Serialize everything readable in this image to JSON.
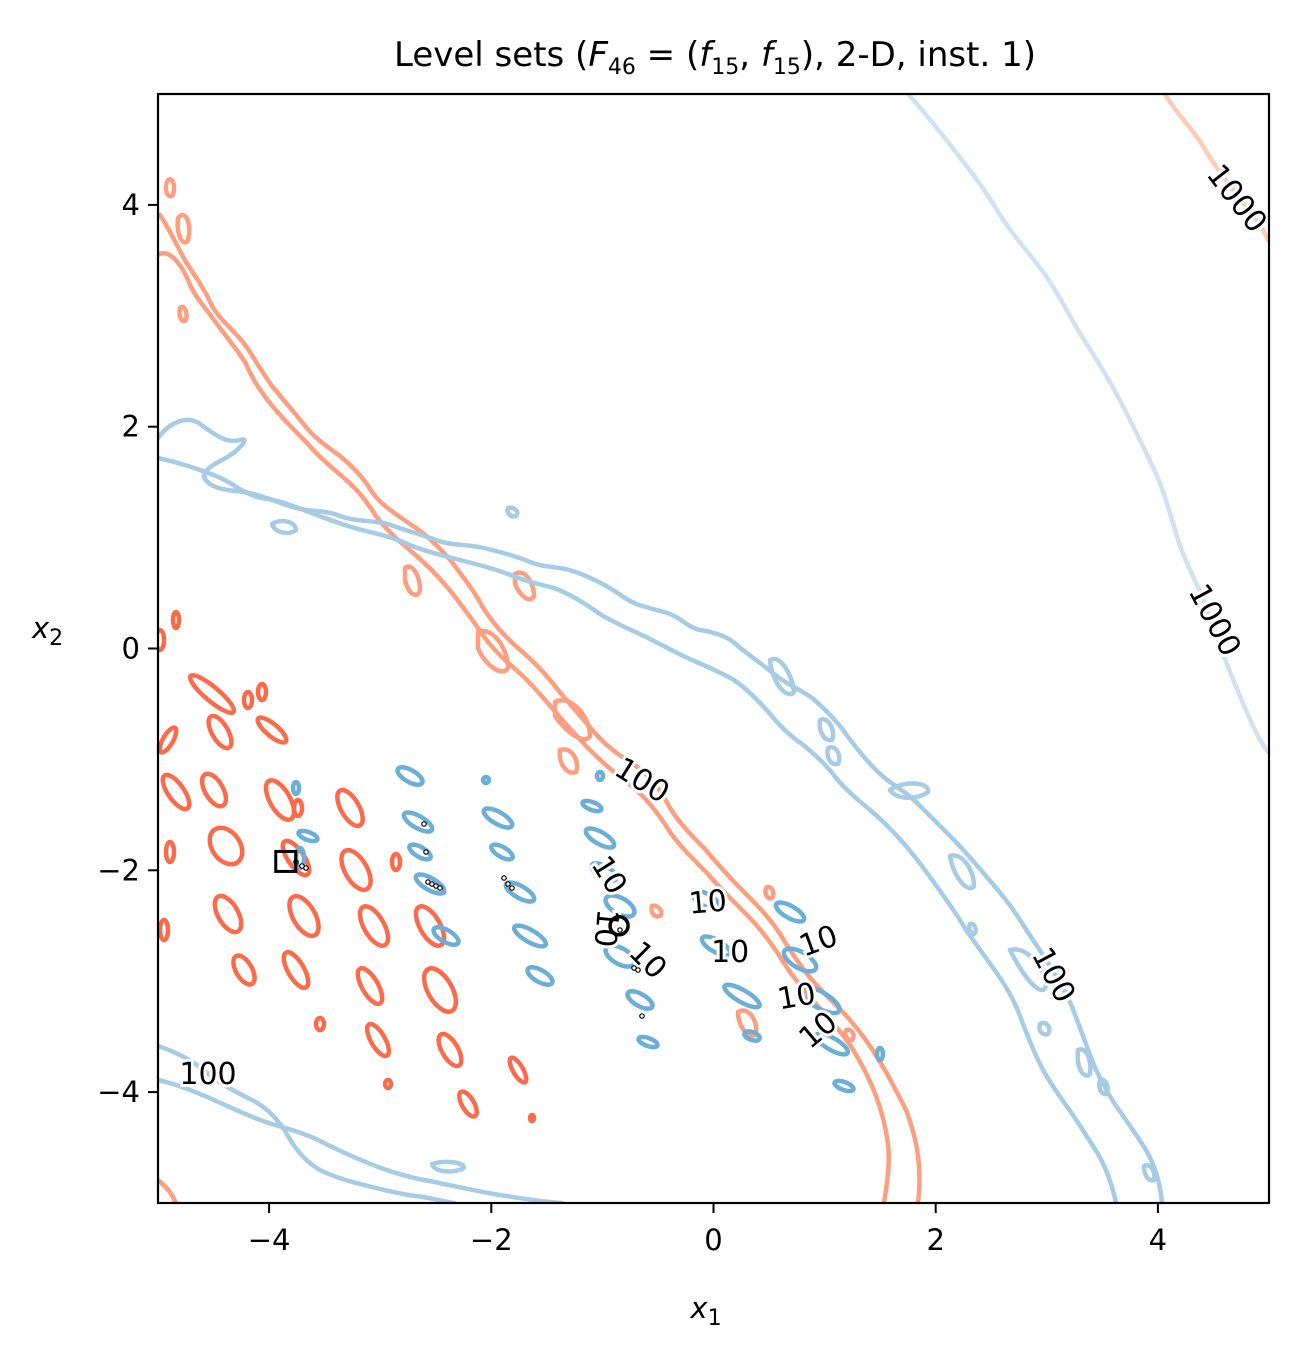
{
  "chart_data": {
    "type": "contour",
    "title": "Level sets (F46 = (f15, f15), 2-D, inst. 1)",
    "title_parts": {
      "prefix": "Level sets (",
      "F": "F",
      "F_sub": "46",
      "eq": " = (",
      "f1": "f",
      "f1_sub": "15",
      "comma": ", ",
      "f2": "f",
      "f2_sub": "15",
      "suffix": "), 2-D, inst. 1)"
    },
    "xlabel": "x",
    "xlabel_sub": "1",
    "ylabel": "x",
    "ylabel_sub": "2",
    "xlim": [
      -5,
      5
    ],
    "ylim": [
      -5,
      5
    ],
    "xticks": [
      -4,
      -2,
      0,
      2,
      4
    ],
    "yticks": [
      -4,
      -2,
      0,
      2,
      4
    ],
    "xtick_labels": [
      "−4",
      "−2",
      "0",
      "2",
      "4"
    ],
    "ytick_labels": [
      "−4",
      "−2",
      "0",
      "2",
      "4"
    ],
    "grid": false,
    "colors": {
      "obj1_level10": "#fb6a4a",
      "obj1_level100": "#fc9e80",
      "obj1_level1000": "#fcccb8",
      "obj2_level10": "#6baed6",
      "obj2_level100": "#a6cbe3",
      "obj2_level1000": "#d0e1f2"
    },
    "contour_labels": [
      {
        "text": "1000",
        "x": 4.7,
        "y": 4.05,
        "angle": 52,
        "color": "#fcccb8"
      },
      {
        "text": "1000",
        "x": 4.5,
        "y": 0.25,
        "angle": 62,
        "color": "#d0e1f2"
      },
      {
        "text": "100",
        "x": -0.65,
        "y": -1.2,
        "angle": 32,
        "color": "#fc9e80"
      },
      {
        "text": "100",
        "x": 3.05,
        "y": -2.95,
        "angle": 62,
        "color": "#a6cbe3"
      },
      {
        "text": "100",
        "x": -4.55,
        "y": -3.85,
        "angle": 0,
        "color": "#a6cbe3"
      },
      {
        "text": "10",
        "x": -0.95,
        "y": -2.05,
        "angle": 58,
        "color": "#6baed6"
      },
      {
        "text": "10",
        "x": -0.98,
        "y": -2.52,
        "angle": 95,
        "color": "#6baed6"
      },
      {
        "text": "10",
        "x": -0.6,
        "y": -2.82,
        "angle": 45,
        "color": "#6baed6"
      },
      {
        "text": "10",
        "x": -0.05,
        "y": -2.3,
        "angle": -5,
        "color": "#6baed6"
      },
      {
        "text": "10",
        "x": 0.15,
        "y": -2.75,
        "angle": 0,
        "color": "#6baed6"
      },
      {
        "text": "10",
        "x": 0.95,
        "y": -2.65,
        "angle": -20,
        "color": "#6baed6"
      },
      {
        "text": "10",
        "x": 0.75,
        "y": -3.15,
        "angle": -10,
        "color": "#6baed6"
      },
      {
        "text": "10",
        "x": 0.95,
        "y": -3.45,
        "angle": -40,
        "color": "#6baed6"
      }
    ],
    "markers": {
      "optimum_obj1": {
        "x": -3.85,
        "y": -1.92,
        "shape": "square"
      },
      "optimum_obj2": {
        "x": -0.85,
        "y": -2.5,
        "shape": "circle"
      }
    }
  }
}
